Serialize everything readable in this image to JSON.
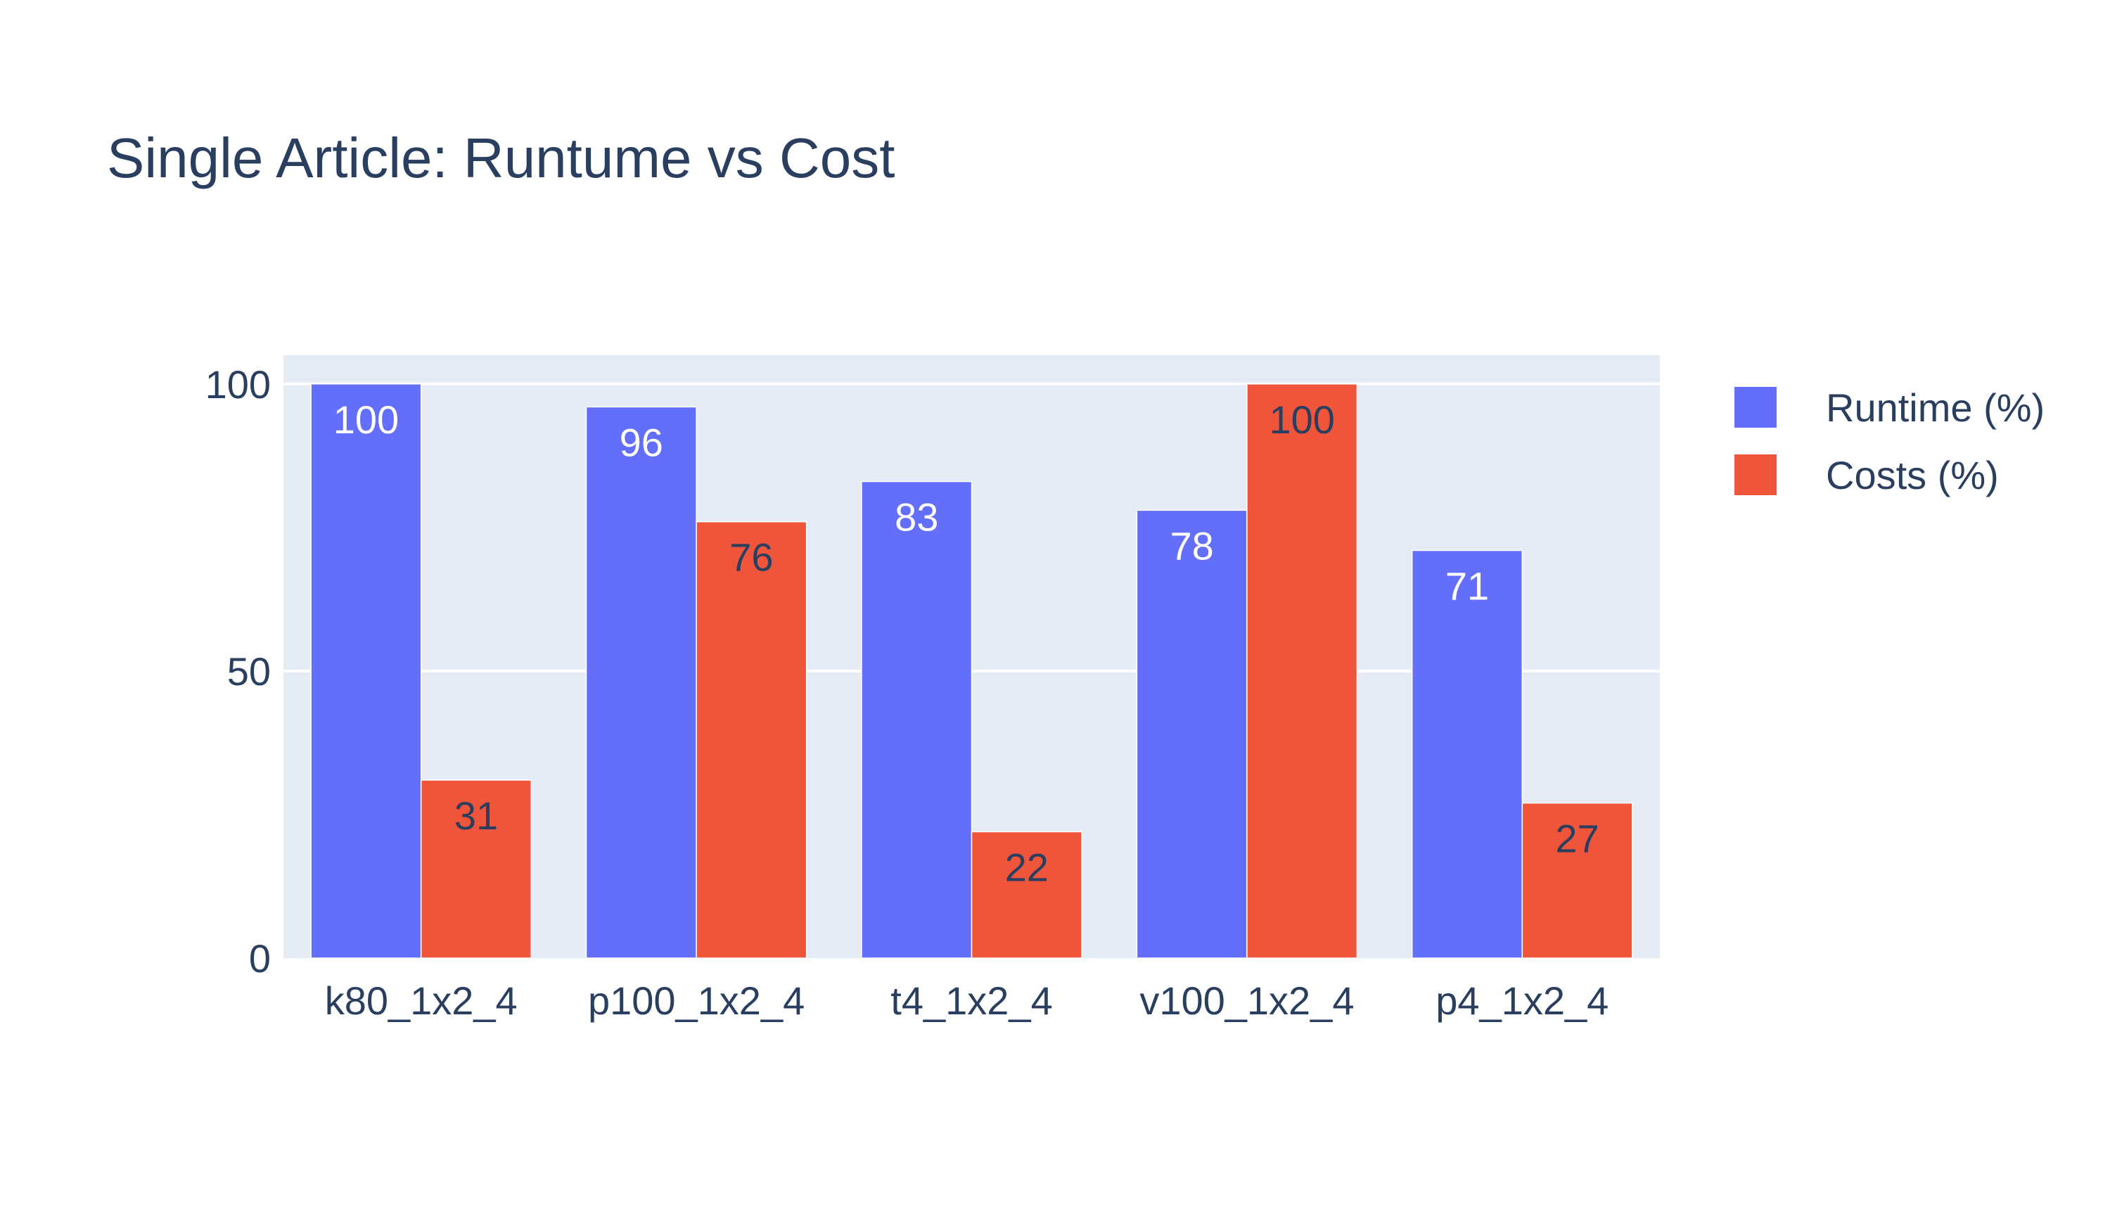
{
  "chart_data": {
    "type": "bar",
    "title": "Single Article: Runtume vs Cost",
    "categories": [
      "k80_1x2_4",
      "p100_1x2_4",
      "t4_1x2_4",
      "v100_1x2_4",
      "p4_1x2_4"
    ],
    "series": [
      {
        "name": "Runtime (%)",
        "values": [
          100,
          96,
          83,
          78,
          71
        ],
        "color": "#636efa",
        "label_color": "#ffffff"
      },
      {
        "name": "Costs (%)",
        "values": [
          31,
          76,
          22,
          100,
          27
        ],
        "color": "#ef553b",
        "label_color": "#2a3f5f"
      }
    ],
    "ylim": [
      0,
      105
    ],
    "yticks": [
      "0",
      "50",
      "100"
    ],
    "grid": true,
    "legend_position": "top-right",
    "plot_background": "#e5ecf6"
  }
}
